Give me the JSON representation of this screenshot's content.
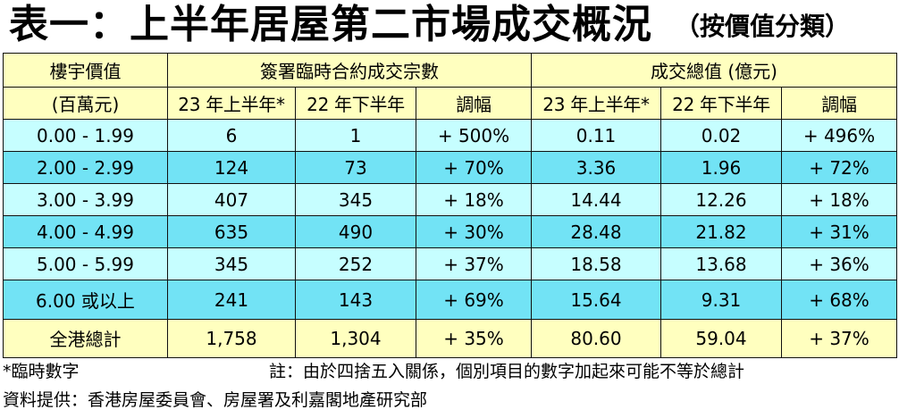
{
  "title": "表一：上半年居屋第二市場成交概況",
  "subtitle": "（按價值分類）",
  "table": {
    "header": {
      "range_label_1": "樓宇價值",
      "range_label_2": "(百萬元)",
      "group1": "簽署臨時合約成交宗數",
      "group2": "成交總值 (億元)",
      "sub_cols": [
        "23 年上半年*",
        "22 年下半年",
        "調幅",
        "23 年上半年*",
        "22 年下半年",
        "調幅"
      ]
    },
    "rows": [
      {
        "range": "0.00 - 1.99",
        "c1": "6",
        "c2": "1",
        "c3": "+ 500%",
        "v1": "0.11",
        "v2": "0.02",
        "v3": "+ 496%"
      },
      {
        "range": "2.00 - 2.99",
        "c1": "124",
        "c2": "73",
        "c3": "+ 70%",
        "v1": "3.36",
        "v2": "1.96",
        "v3": "+ 72%"
      },
      {
        "range": "3.00 - 3.99",
        "c1": "407",
        "c2": "345",
        "c3": "+ 18%",
        "v1": "14.44",
        "v2": "12.26",
        "v3": "+ 18%"
      },
      {
        "range": "4.00 - 4.99",
        "c1": "635",
        "c2": "490",
        "c3": "+ 30%",
        "v1": "28.48",
        "v2": "21.82",
        "v3": "+ 31%"
      },
      {
        "range": "5.00 - 5.99",
        "c1": "345",
        "c2": "252",
        "c3": "+ 37%",
        "v1": "18.58",
        "v2": "13.68",
        "v3": "+ 36%"
      },
      {
        "range": "6.00 或以上",
        "c1": "241",
        "c2": "143",
        "c3": "+ 69%",
        "v1": "15.64",
        "v2": "9.31",
        "v3": "+ 68%"
      }
    ],
    "total": {
      "range": "全港總計",
      "c1": "1,758",
      "c2": "1,304",
      "c3": "+ 35%",
      "v1": "80.60",
      "v2": "59.04",
      "v3": "+ 37%"
    }
  },
  "footnote_star": "*臨時數字",
  "footnote_note": "註：由於四捨五入關係，個別項目的數字加起來可能不等於總計",
  "source": "資料提供：香港房屋委員會、房屋署及利嘉閣地產研究部",
  "colors": {
    "header_bg": "#ffffbf",
    "row_light": "#c6feff",
    "row_dark": "#72e3f5"
  }
}
